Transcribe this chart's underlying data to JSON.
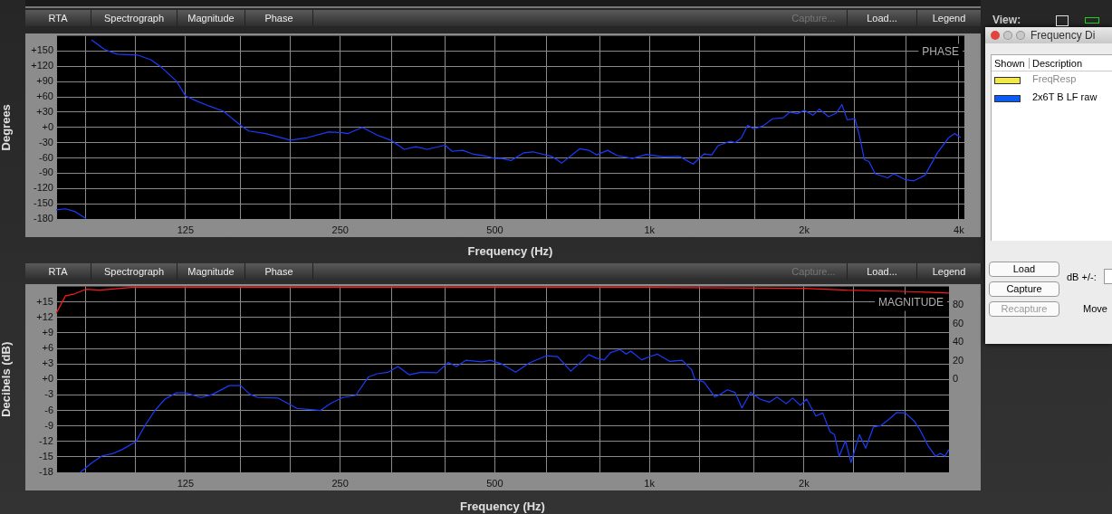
{
  "chart_data": [
    {
      "type": "line",
      "title": "PHASE",
      "xlabel": "Frequency (Hz)",
      "ylabel": "Degrees",
      "log": "x",
      "grid": true,
      "xlim": [
        70,
        4100
      ],
      "xticks": [
        {
          "value": 80,
          "label": null
        },
        {
          "value": 100,
          "label": null
        },
        125,
        {
          "value": 160,
          "label": null
        },
        {
          "value": 200,
          "label": null
        },
        250,
        {
          "value": 315,
          "label": null
        },
        {
          "value": 400,
          "label": null
        },
        500,
        {
          "value": 630,
          "label": null
        },
        {
          "value": 800,
          "label": null
        },
        {
          "value": 1000,
          "label": "1k"
        },
        {
          "value": 1250,
          "label": null
        },
        {
          "value": 1600,
          "label": null
        },
        {
          "value": 2000,
          "label": "2k"
        },
        {
          "value": 2500,
          "label": null
        },
        {
          "value": 3150,
          "label": null
        },
        {
          "value": 4000,
          "label": "4k"
        }
      ],
      "ylim": [
        -180,
        180
      ],
      "yticks": [
        -180,
        -150,
        -120,
        -90,
        -60,
        -30,
        {
          "value": 0,
          "label": "+0"
        },
        {
          "value": 30,
          "label": "+30"
        },
        {
          "value": 60,
          "label": "+60"
        },
        {
          "value": 90,
          "label": "+90"
        },
        {
          "value": 120,
          "label": "+120"
        },
        {
          "value": 150,
          "label": "+150"
        }
      ],
      "annotations": [
        "RTA",
        "Spectrograph",
        "Magnitude",
        "Phase",
        "Capture...",
        "Load...",
        "Legend"
      ],
      "series": [
        {
          "color": "#1a3cff",
          "x": [
            70,
            73,
            76,
            80,
            81,
            82,
            87,
            92,
            101,
            107,
            112,
            120,
            125,
            132,
            139,
            148,
            160,
            166,
            179,
            200,
            216,
            237,
            250,
            259,
            276,
            295,
            315,
            333,
            351,
            369,
            400,
            413,
            433,
            452,
            479,
            500,
            516,
            538,
            569,
            593,
            645,
            675,
            731,
            762,
            789,
            829,
            864,
            926,
            986,
            1065,
            1142,
            1216,
            1277,
            1322,
            1359,
            1437,
            1467,
            1509,
            1552,
            1596,
            1664,
            1735,
            1822,
            1873,
            1940,
            2000,
            2080,
            2139,
            2230,
            2309,
            2368,
            2425,
            2511,
            2564,
            2618,
            2674,
            2749,
            2907,
            2988,
            3150,
            3272,
            3436,
            3633,
            3815,
            3923,
            4034
          ],
          "values": [
            -162,
            -160,
            -165,
            -179,
            null,
            172,
            153,
            144,
            142,
            133,
            119,
            91,
            62,
            51,
            42,
            32,
            4,
            -7,
            -12,
            -25,
            -20,
            -9,
            -10,
            -12,
            0,
            -15,
            -26,
            -43,
            -38,
            -43,
            -35,
            -47,
            -45,
            -52,
            -56,
            -61,
            -61,
            -65,
            -50,
            -48,
            -57,
            -70,
            -42,
            -45,
            -54,
            -45,
            -55,
            -61,
            -53,
            -58,
            -57,
            -72,
            -52,
            -54,
            -36,
            -27,
            -30,
            -21,
            4,
            -3,
            3,
            17,
            19,
            30,
            27,
            34,
            24,
            36,
            21,
            28,
            45,
            15,
            17,
            -18,
            -63,
            -67,
            -91,
            -99,
            -91,
            -103,
            -105,
            -94,
            -50,
            -21,
            -12,
            -20
          ]
        }
      ]
    },
    {
      "type": "line",
      "title": "MAGNITUDE",
      "xlabel": "Frequency (Hz)",
      "ylabel": "Decibels (dB)",
      "log": "x",
      "grid": true,
      "xlim": [
        70,
        3830
      ],
      "xticks": [
        {
          "value": 80,
          "label": null
        },
        {
          "value": 100,
          "label": null
        },
        125,
        {
          "value": 160,
          "label": null
        },
        {
          "value": 200,
          "label": null
        },
        250,
        {
          "value": 315,
          "label": null
        },
        {
          "value": 400,
          "label": null
        },
        500,
        {
          "value": 630,
          "label": null
        },
        {
          "value": 800,
          "label": null
        },
        {
          "value": 1000,
          "label": "1k"
        },
        {
          "value": 1250,
          "label": null
        },
        {
          "value": 1600,
          "label": null
        },
        {
          "value": 2000,
          "label": "2k"
        },
        {
          "value": 2500,
          "label": null
        },
        {
          "value": 3150,
          "label": null
        }
      ],
      "ylim": [
        -18,
        18
      ],
      "yticks": [
        -18,
        -15,
        -12,
        -9,
        -6,
        -3,
        {
          "value": 0,
          "label": "+0"
        },
        {
          "value": 3,
          "label": "+3"
        },
        {
          "value": 6,
          "label": "+6"
        },
        {
          "value": 9,
          "label": "+9"
        },
        {
          "value": 12,
          "label": "+12"
        },
        {
          "value": 15,
          "label": "+15"
        }
      ],
      "y2lim": [
        -100,
        100
      ],
      "y2ticks": [
        0,
        20,
        40,
        60,
        80
      ],
      "annotations": [
        "RTA",
        "Spectrograph",
        "Magnitude",
        "Phase",
        "Capture...",
        "Load...",
        "Legend"
      ],
      "series": [
        {
          "color": "#ff1a1a",
          "axis": "y2",
          "x": [
            70,
            73,
            76,
            80,
            85,
            98,
            500,
            1000,
            2000,
            2425,
            3000,
            3826
          ],
          "values": [
            71,
            90,
            92,
            97,
            96,
            99,
            99,
            99,
            98,
            96,
            95,
            93
          ]
        },
        {
          "color": "#1a3cff",
          "x": [
            78,
            82,
            86,
            90,
            94,
            100,
            104,
            109,
            114,
            120,
            125,
            134,
            141,
            152,
            160,
            167,
            173,
            189,
            206,
            229,
            240,
            253,
            268,
            284,
            295,
            310,
            324,
            341,
            359,
            386,
            406,
            421,
            439,
            472,
            490,
            516,
            549,
            584,
            631,
            663,
            703,
            736,
            762,
            789,
            817,
            840,
            876,
            901,
            920,
            966,
            1000,
            1036,
            1095,
            1158,
            1208,
            1225,
            1277,
            1341,
            1379,
            1418,
            1467,
            1514,
            1574,
            1641,
            1711,
            1772,
            1847,
            1900,
            1967,
            2023,
            2109,
            2175,
            2246,
            2293,
            2341,
            2408,
            2469,
            2564,
            2636,
            2730,
            2827,
            2927,
            3031,
            3150,
            3272,
            3364,
            3485,
            3608,
            3684,
            3761,
            3826
          ],
          "values": [
            -18,
            -16.2,
            -14.8,
            -14.4,
            -13.6,
            -12.1,
            -9.1,
            -6,
            -3.8,
            -2.6,
            -2.6,
            -3.5,
            -2.9,
            -1.2,
            -1.2,
            -2.9,
            -3.5,
            -3.6,
            -5.6,
            -6,
            -4.6,
            -3.5,
            -3.1,
            0.5,
            1.1,
            1.4,
            2.5,
            0.9,
            1.4,
            1.3,
            3.3,
            2.5,
            3.7,
            3.4,
            3.7,
            3,
            1.4,
            3.2,
            4.6,
            4.4,
            1.6,
            3.4,
            4.8,
            4.1,
            3.8,
            5.2,
            5.8,
            4.9,
            5.5,
            3.8,
            4.4,
            4.9,
            3.5,
            3.7,
            1.9,
            0.1,
            -0.5,
            -3.4,
            -2.8,
            -2,
            -2.5,
            -5.5,
            -2.5,
            -3.8,
            -4.4,
            -3.4,
            -4.7,
            -3.6,
            -5,
            -3.8,
            -7.1,
            -6.5,
            -10.1,
            -10.7,
            -14.9,
            -11.9,
            -16.1,
            -10.7,
            -13.3,
            -9.2,
            -8.9,
            -7.7,
            -6.4,
            -6.5,
            -8,
            -9.8,
            -12.8,
            -14.9,
            -14.3,
            -14.9,
            -13.6
          ]
        }
      ]
    },
    {
      "type": "other",
      "title": "Frequency Di",
      "series": [
        {
          "name": "FreqResp",
          "color": "#f2e84a"
        },
        {
          "name": "2x6T B LF raw",
          "color": "#0a5cf5"
        }
      ],
      "annotations": [
        "Shown",
        "Description",
        "Load",
        "Capture",
        "Recapture",
        "dB +/-:",
        "Move",
        "View:"
      ]
    }
  ]
}
